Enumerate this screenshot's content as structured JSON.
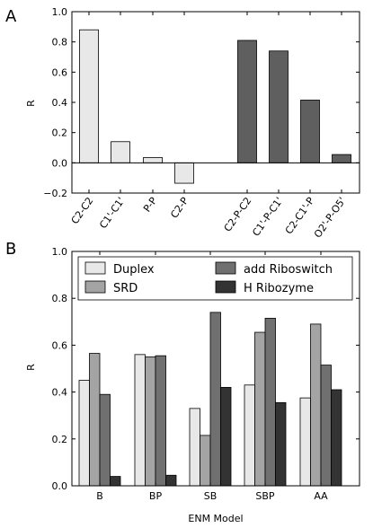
{
  "chart_data": [
    {
      "type": "bar",
      "panel_label": "A",
      "ylabel": "R",
      "xlabel": "",
      "ylim": [
        -0.2,
        1.0
      ],
      "yticks": [
        -0.2,
        0.0,
        0.2,
        0.4,
        0.6,
        0.8,
        1.0
      ],
      "ytick_labels": [
        "−0.2",
        "0.0",
        "0.2",
        "0.4",
        "0.6",
        "0.8",
        "1.0"
      ],
      "zero_line": true,
      "grid": false,
      "bars": [
        {
          "category": "C2-C2",
          "value": 0.88,
          "color": "#e8e8e8"
        },
        {
          "category": "C1'-C1'",
          "value": 0.14,
          "color": "#e8e8e8"
        },
        {
          "category": "P-P",
          "value": 0.035,
          "color": "#e8e8e8"
        },
        {
          "category": "C2-P",
          "value": -0.135,
          "color": "#e8e8e8"
        },
        {
          "category": "C2-P-C2",
          "value": 0.81,
          "color": "#5f5f5f"
        },
        {
          "category": "C1'-P-C1'",
          "value": 0.74,
          "color": "#5f5f5f"
        },
        {
          "category": "C2-C1'-P",
          "value": 0.415,
          "color": "#5f5f5f"
        },
        {
          "category": "O2'-P-O5'",
          "value": 0.055,
          "color": "#5f5f5f"
        }
      ]
    },
    {
      "type": "bar",
      "panel_label": "B",
      "ylabel": "R",
      "xlabel": "ENM Model",
      "ylim": [
        0.0,
        1.0
      ],
      "yticks": [
        0.0,
        0.2,
        0.4,
        0.6,
        0.8,
        1.0
      ],
      "ytick_labels": [
        "0.0",
        "0.2",
        "0.4",
        "0.6",
        "0.8",
        "1.0"
      ],
      "grid": false,
      "legend": "top",
      "categories": [
        "B",
        "BP",
        "SB",
        "SBP",
        "AA"
      ],
      "series": [
        {
          "name": "Duplex",
          "color": "#e8e8e8",
          "values": [
            0.45,
            0.56,
            0.33,
            0.43,
            0.375
          ]
        },
        {
          "name": "SRD",
          "color": "#a4a4a4",
          "values": [
            0.565,
            0.55,
            0.215,
            0.655,
            0.69
          ]
        },
        {
          "name": "add Riboswitch",
          "color": "#707070",
          "values": [
            0.39,
            0.555,
            0.74,
            0.715,
            0.515
          ]
        },
        {
          "name": "H Ribozyme",
          "color": "#333333",
          "values": [
            0.04,
            0.045,
            0.42,
            0.355,
            0.41
          ]
        }
      ]
    }
  ]
}
